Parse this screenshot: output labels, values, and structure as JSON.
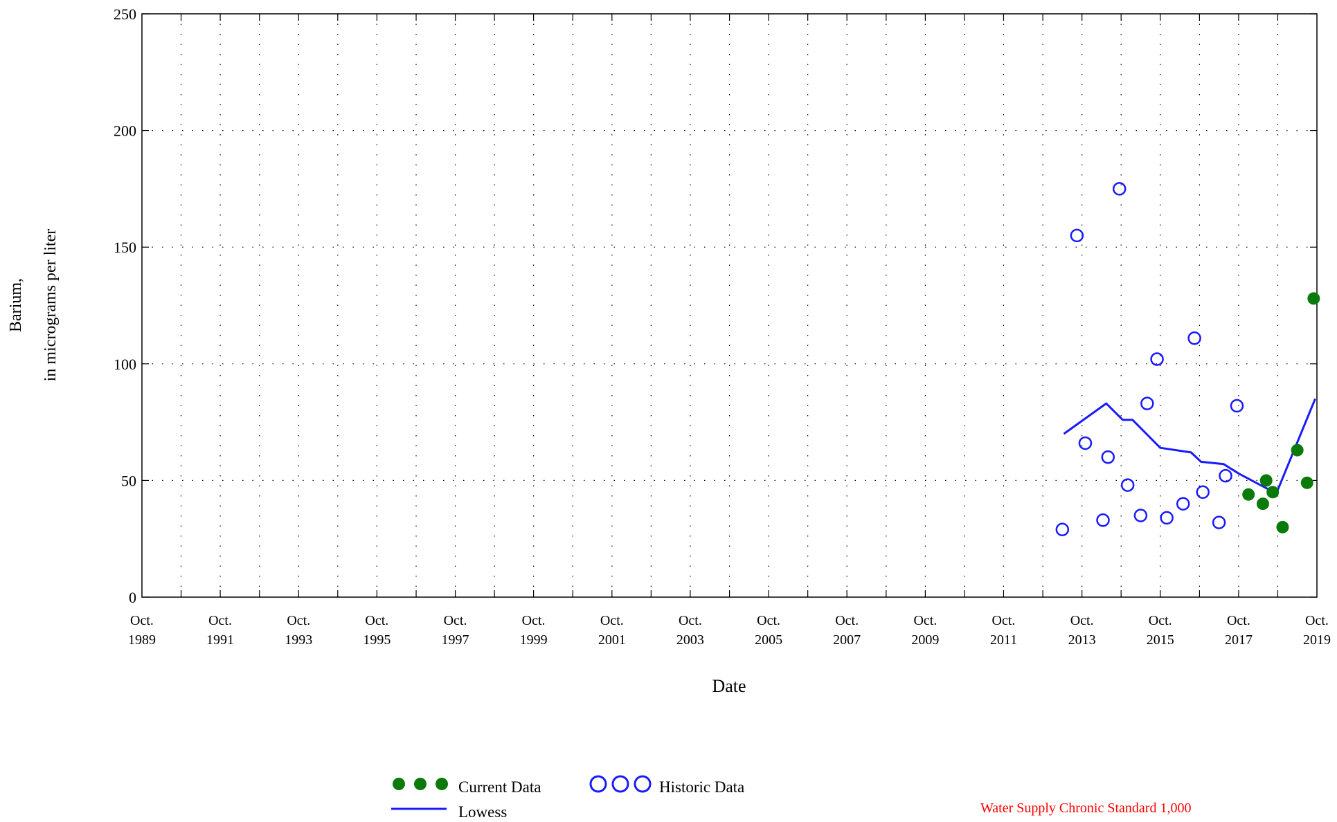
{
  "chart_data": {
    "type": "scatter",
    "ylabel_line1": "Barium,",
    "ylabel_line2": "in micrograms per liter",
    "xlabel": "Date",
    "ylim": [
      0,
      250
    ],
    "yticks": [
      0,
      50,
      100,
      150,
      200,
      250
    ],
    "xlim": [
      "1989-10-01",
      "2019-10-01"
    ],
    "xtick_labels": [
      {
        "date": "1989-10-01",
        "line1": "Oct.",
        "line2": "1989"
      },
      {
        "date": "1991-10-01",
        "line1": "Oct.",
        "line2": "1991"
      },
      {
        "date": "1993-10-01",
        "line1": "Oct.",
        "line2": "1993"
      },
      {
        "date": "1995-10-01",
        "line1": "Oct.",
        "line2": "1995"
      },
      {
        "date": "1997-10-01",
        "line1": "Oct.",
        "line2": "1997"
      },
      {
        "date": "1999-10-01",
        "line1": "Oct.",
        "line2": "1999"
      },
      {
        "date": "2001-10-01",
        "line1": "Oct.",
        "line2": "2001"
      },
      {
        "date": "2003-10-01",
        "line1": "Oct.",
        "line2": "2003"
      },
      {
        "date": "2005-10-01",
        "line1": "Oct.",
        "line2": "2005"
      },
      {
        "date": "2007-10-01",
        "line1": "Oct.",
        "line2": "2007"
      },
      {
        "date": "2009-10-01",
        "line1": "Oct.",
        "line2": "2009"
      },
      {
        "date": "2011-10-01",
        "line1": "Oct.",
        "line2": "2011"
      },
      {
        "date": "2013-10-01",
        "line1": "Oct.",
        "line2": "2013"
      },
      {
        "date": "2015-10-01",
        "line1": "Oct.",
        "line2": "2015"
      },
      {
        "date": "2017-10-01",
        "line1": "Oct.",
        "line2": "2017"
      },
      {
        "date": "2019-10-01",
        "line1": "Oct.",
        "line2": "2019"
      }
    ],
    "grid": true,
    "series": [
      {
        "name": "Historic Data",
        "marker": "open-circle",
        "color": "#1a1aff",
        "points": [
          {
            "x": "2013-04-01",
            "y": 29
          },
          {
            "x": "2013-08-15",
            "y": 155
          },
          {
            "x": "2013-11-01",
            "y": 66
          },
          {
            "x": "2014-04-15",
            "y": 33
          },
          {
            "x": "2014-06-01",
            "y": 60
          },
          {
            "x": "2014-09-15",
            "y": 175
          },
          {
            "x": "2014-12-01",
            "y": 48
          },
          {
            "x": "2015-04-01",
            "y": 35
          },
          {
            "x": "2015-06-01",
            "y": 83
          },
          {
            "x": "2015-09-01",
            "y": 102
          },
          {
            "x": "2015-12-01",
            "y": 34
          },
          {
            "x": "2016-05-01",
            "y": 40
          },
          {
            "x": "2016-08-15",
            "y": 111
          },
          {
            "x": "2016-11-01",
            "y": 45
          },
          {
            "x": "2017-04-01",
            "y": 32
          },
          {
            "x": "2017-06-01",
            "y": 52
          },
          {
            "x": "2017-09-15",
            "y": 82
          }
        ]
      },
      {
        "name": "Current Data",
        "marker": "filled-circle",
        "color": "#0a7a0a",
        "points": [
          {
            "x": "2018-01-01",
            "y": 44
          },
          {
            "x": "2018-05-15",
            "y": 40
          },
          {
            "x": "2018-06-15",
            "y": 50
          },
          {
            "x": "2018-08-15",
            "y": 45
          },
          {
            "x": "2018-11-15",
            "y": 30
          },
          {
            "x": "2019-04-01",
            "y": 63
          },
          {
            "x": "2019-07-01",
            "y": 49
          },
          {
            "x": "2019-09-01",
            "y": 128
          }
        ]
      },
      {
        "name": "Lowess",
        "marker": "line",
        "color": "#1a1aff",
        "points": [
          {
            "x": "2013-04-15",
            "y": 70
          },
          {
            "x": "2014-05-15",
            "y": 83
          },
          {
            "x": "2014-10-15",
            "y": 76
          },
          {
            "x": "2015-01-15",
            "y": 76
          },
          {
            "x": "2015-10-01",
            "y": 64
          },
          {
            "x": "2016-07-15",
            "y": 62
          },
          {
            "x": "2016-10-15",
            "y": 58
          },
          {
            "x": "2017-05-15",
            "y": 57
          },
          {
            "x": "2017-10-01",
            "y": 53
          },
          {
            "x": "2018-07-15",
            "y": 46
          },
          {
            "x": "2018-10-01",
            "y": 46
          },
          {
            "x": "2019-09-15",
            "y": 85
          }
        ]
      }
    ],
    "legend": {
      "current": "Current Data",
      "historic": "Historic Data",
      "lowess": "Lowess"
    },
    "annotation": "Water Supply Chronic Standard 1,000",
    "annotation_color": "#ff0000"
  }
}
